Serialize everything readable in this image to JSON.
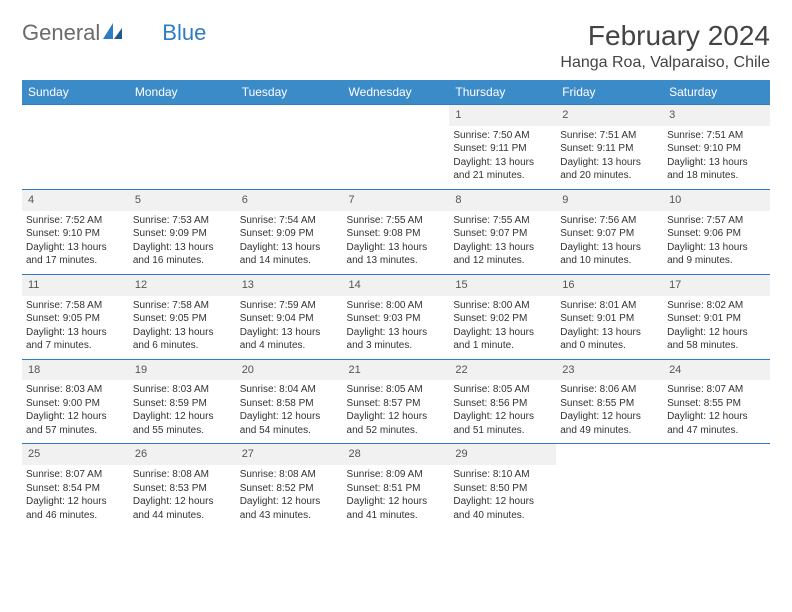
{
  "logo": {
    "text_general": "General",
    "text_blue": "Blue"
  },
  "title": "February 2024",
  "location": "Hanga Roa, Valparaiso, Chile",
  "colors": {
    "header_bg": "#3b8bc9",
    "row_divider": "#2e7cc2",
    "daynum_bg": "#f1f1f1",
    "text": "#333333",
    "logo_gray": "#6b6b6b",
    "logo_blue": "#2e7cc2"
  },
  "day_headers": [
    "Sunday",
    "Monday",
    "Tuesday",
    "Wednesday",
    "Thursday",
    "Friday",
    "Saturday"
  ],
  "weeks": [
    [
      {
        "blank": true
      },
      {
        "blank": true
      },
      {
        "blank": true
      },
      {
        "blank": true
      },
      {
        "day": "1",
        "sunrise": "Sunrise: 7:50 AM",
        "sunset": "Sunset: 9:11 PM",
        "daylight1": "Daylight: 13 hours",
        "daylight2": "and 21 minutes."
      },
      {
        "day": "2",
        "sunrise": "Sunrise: 7:51 AM",
        "sunset": "Sunset: 9:11 PM",
        "daylight1": "Daylight: 13 hours",
        "daylight2": "and 20 minutes."
      },
      {
        "day": "3",
        "sunrise": "Sunrise: 7:51 AM",
        "sunset": "Sunset: 9:10 PM",
        "daylight1": "Daylight: 13 hours",
        "daylight2": "and 18 minutes."
      }
    ],
    [
      {
        "day": "4",
        "sunrise": "Sunrise: 7:52 AM",
        "sunset": "Sunset: 9:10 PM",
        "daylight1": "Daylight: 13 hours",
        "daylight2": "and 17 minutes."
      },
      {
        "day": "5",
        "sunrise": "Sunrise: 7:53 AM",
        "sunset": "Sunset: 9:09 PM",
        "daylight1": "Daylight: 13 hours",
        "daylight2": "and 16 minutes."
      },
      {
        "day": "6",
        "sunrise": "Sunrise: 7:54 AM",
        "sunset": "Sunset: 9:09 PM",
        "daylight1": "Daylight: 13 hours",
        "daylight2": "and 14 minutes."
      },
      {
        "day": "7",
        "sunrise": "Sunrise: 7:55 AM",
        "sunset": "Sunset: 9:08 PM",
        "daylight1": "Daylight: 13 hours",
        "daylight2": "and 13 minutes."
      },
      {
        "day": "8",
        "sunrise": "Sunrise: 7:55 AM",
        "sunset": "Sunset: 9:07 PM",
        "daylight1": "Daylight: 13 hours",
        "daylight2": "and 12 minutes."
      },
      {
        "day": "9",
        "sunrise": "Sunrise: 7:56 AM",
        "sunset": "Sunset: 9:07 PM",
        "daylight1": "Daylight: 13 hours",
        "daylight2": "and 10 minutes."
      },
      {
        "day": "10",
        "sunrise": "Sunrise: 7:57 AM",
        "sunset": "Sunset: 9:06 PM",
        "daylight1": "Daylight: 13 hours",
        "daylight2": "and 9 minutes."
      }
    ],
    [
      {
        "day": "11",
        "sunrise": "Sunrise: 7:58 AM",
        "sunset": "Sunset: 9:05 PM",
        "daylight1": "Daylight: 13 hours",
        "daylight2": "and 7 minutes."
      },
      {
        "day": "12",
        "sunrise": "Sunrise: 7:58 AM",
        "sunset": "Sunset: 9:05 PM",
        "daylight1": "Daylight: 13 hours",
        "daylight2": "and 6 minutes."
      },
      {
        "day": "13",
        "sunrise": "Sunrise: 7:59 AM",
        "sunset": "Sunset: 9:04 PM",
        "daylight1": "Daylight: 13 hours",
        "daylight2": "and 4 minutes."
      },
      {
        "day": "14",
        "sunrise": "Sunrise: 8:00 AM",
        "sunset": "Sunset: 9:03 PM",
        "daylight1": "Daylight: 13 hours",
        "daylight2": "and 3 minutes."
      },
      {
        "day": "15",
        "sunrise": "Sunrise: 8:00 AM",
        "sunset": "Sunset: 9:02 PM",
        "daylight1": "Daylight: 13 hours",
        "daylight2": "and 1 minute."
      },
      {
        "day": "16",
        "sunrise": "Sunrise: 8:01 AM",
        "sunset": "Sunset: 9:01 PM",
        "daylight1": "Daylight: 13 hours",
        "daylight2": "and 0 minutes."
      },
      {
        "day": "17",
        "sunrise": "Sunrise: 8:02 AM",
        "sunset": "Sunset: 9:01 PM",
        "daylight1": "Daylight: 12 hours",
        "daylight2": "and 58 minutes."
      }
    ],
    [
      {
        "day": "18",
        "sunrise": "Sunrise: 8:03 AM",
        "sunset": "Sunset: 9:00 PM",
        "daylight1": "Daylight: 12 hours",
        "daylight2": "and 57 minutes."
      },
      {
        "day": "19",
        "sunrise": "Sunrise: 8:03 AM",
        "sunset": "Sunset: 8:59 PM",
        "daylight1": "Daylight: 12 hours",
        "daylight2": "and 55 minutes."
      },
      {
        "day": "20",
        "sunrise": "Sunrise: 8:04 AM",
        "sunset": "Sunset: 8:58 PM",
        "daylight1": "Daylight: 12 hours",
        "daylight2": "and 54 minutes."
      },
      {
        "day": "21",
        "sunrise": "Sunrise: 8:05 AM",
        "sunset": "Sunset: 8:57 PM",
        "daylight1": "Daylight: 12 hours",
        "daylight2": "and 52 minutes."
      },
      {
        "day": "22",
        "sunrise": "Sunrise: 8:05 AM",
        "sunset": "Sunset: 8:56 PM",
        "daylight1": "Daylight: 12 hours",
        "daylight2": "and 51 minutes."
      },
      {
        "day": "23",
        "sunrise": "Sunrise: 8:06 AM",
        "sunset": "Sunset: 8:55 PM",
        "daylight1": "Daylight: 12 hours",
        "daylight2": "and 49 minutes."
      },
      {
        "day": "24",
        "sunrise": "Sunrise: 8:07 AM",
        "sunset": "Sunset: 8:55 PM",
        "daylight1": "Daylight: 12 hours",
        "daylight2": "and 47 minutes."
      }
    ],
    [
      {
        "day": "25",
        "sunrise": "Sunrise: 8:07 AM",
        "sunset": "Sunset: 8:54 PM",
        "daylight1": "Daylight: 12 hours",
        "daylight2": "and 46 minutes."
      },
      {
        "day": "26",
        "sunrise": "Sunrise: 8:08 AM",
        "sunset": "Sunset: 8:53 PM",
        "daylight1": "Daylight: 12 hours",
        "daylight2": "and 44 minutes."
      },
      {
        "day": "27",
        "sunrise": "Sunrise: 8:08 AM",
        "sunset": "Sunset: 8:52 PM",
        "daylight1": "Daylight: 12 hours",
        "daylight2": "and 43 minutes."
      },
      {
        "day": "28",
        "sunrise": "Sunrise: 8:09 AM",
        "sunset": "Sunset: 8:51 PM",
        "daylight1": "Daylight: 12 hours",
        "daylight2": "and 41 minutes."
      },
      {
        "day": "29",
        "sunrise": "Sunrise: 8:10 AM",
        "sunset": "Sunset: 8:50 PM",
        "daylight1": "Daylight: 12 hours",
        "daylight2": "and 40 minutes."
      },
      {
        "blank": true
      },
      {
        "blank": true
      }
    ]
  ]
}
